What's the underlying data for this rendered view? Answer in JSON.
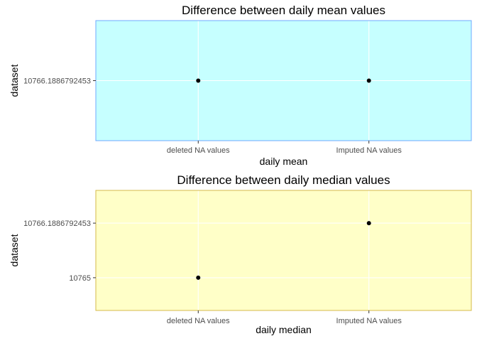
{
  "chart_data": [
    {
      "type": "scatter",
      "title": "Difference between daily mean values",
      "xlabel": "daily mean",
      "ylabel": "dataset",
      "x_categories": [
        "deleted NA values",
        "Imputed NA values"
      ],
      "y_categories": [
        "10766.1886792453"
      ],
      "points": [
        {
          "x": "deleted NA values",
          "y": "10766.1886792453"
        },
        {
          "x": "Imputed NA values",
          "y": "10766.1886792453"
        }
      ],
      "grid": true,
      "panel_fill": "#c6ffff",
      "panel_border": "#6fa8ff",
      "point_color": "#000000"
    },
    {
      "type": "scatter",
      "title": "Difference between daily median values",
      "xlabel": "daily median",
      "ylabel": "dataset",
      "x_categories": [
        "deleted NA values",
        "Imputed NA values"
      ],
      "y_categories": [
        "10765",
        "10766.1886792453"
      ],
      "points": [
        {
          "x": "deleted NA values",
          "y": "10765"
        },
        {
          "x": "Imputed NA values",
          "y": "10766.1886792453"
        }
      ],
      "grid": true,
      "panel_fill": "#ffffc8",
      "panel_border": "#d4b84a",
      "point_color": "#000000"
    }
  ]
}
